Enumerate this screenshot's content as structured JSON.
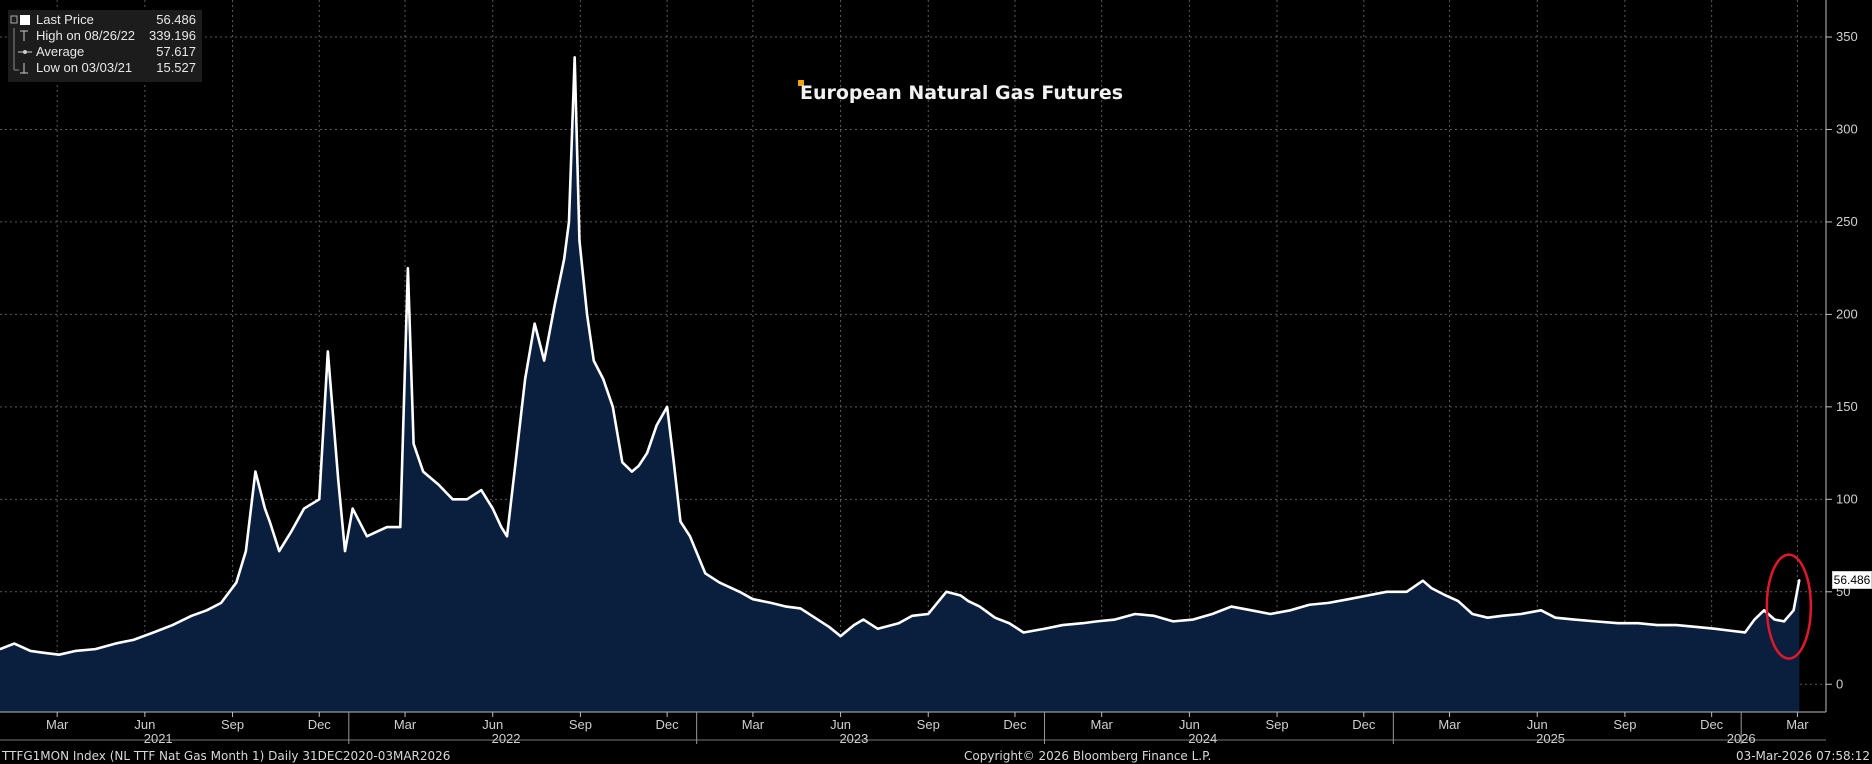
{
  "legend": {
    "items": [
      {
        "label": "Last Price",
        "value": "56.486"
      },
      {
        "label": "High on 08/26/22",
        "value": "339.196"
      },
      {
        "label": "Average",
        "value": "57.617"
      },
      {
        "label": "Low on 03/03/21",
        "value": "15.527"
      }
    ]
  },
  "footer": {
    "left": "TTFG1MON Index (NL TTF Nat Gas Month 1) Daily 31DEC2020-03MAR2026",
    "center": "Copyright© 2026 Bloomberg Finance L.P.",
    "right": "03-Mar-2026 07:58:12"
  },
  "colors": {
    "line": "#ffffff",
    "fill": "#0a1f3d",
    "annotation": "#e0182d",
    "title_marker": "#f5a30a",
    "grid": "#5a5a5a"
  },
  "chart_data": {
    "type": "area",
    "title": "European Natural Gas Futures",
    "series": [
      {
        "name": "TTFG1MON Index",
        "dates": [
          "2020-12-31",
          "2021-01-15",
          "2021-02-01",
          "2021-02-15",
          "2021-03-03",
          "2021-03-20",
          "2021-04-10",
          "2021-05-01",
          "2021-05-20",
          "2021-06-10",
          "2021-06-30",
          "2021-07-20",
          "2021-08-05",
          "2021-08-20",
          "2021-09-05",
          "2021-09-15",
          "2021-09-25",
          "2021-10-05",
          "2021-10-10",
          "2021-10-20",
          "2021-11-01",
          "2021-11-15",
          "2021-12-01",
          "2021-12-10",
          "2021-12-21",
          "2021-12-28",
          "2022-01-05",
          "2022-01-20",
          "2022-02-10",
          "2022-02-24",
          "2022-03-04",
          "2022-03-10",
          "2022-03-20",
          "2022-04-05",
          "2022-04-20",
          "2022-05-05",
          "2022-05-20",
          "2022-06-01",
          "2022-06-10",
          "2022-06-16",
          "2022-06-25",
          "2022-07-05",
          "2022-07-15",
          "2022-07-25",
          "2022-08-05",
          "2022-08-15",
          "2022-08-20",
          "2022-08-26",
          "2022-08-31",
          "2022-09-08",
          "2022-09-15",
          "2022-09-25",
          "2022-10-05",
          "2022-10-15",
          "2022-10-25",
          "2022-11-01",
          "2022-11-10",
          "2022-11-20",
          "2022-12-01",
          "2022-12-08",
          "2022-12-15",
          "2022-12-25",
          "2023-01-10",
          "2023-01-25",
          "2023-02-15",
          "2023-03-01",
          "2023-03-20",
          "2023-04-05",
          "2023-04-20",
          "2023-05-05",
          "2023-05-20",
          "2023-06-01",
          "2023-06-15",
          "2023-06-25",
          "2023-07-10",
          "2023-08-01",
          "2023-08-15",
          "2023-09-01",
          "2023-09-20",
          "2023-10-05",
          "2023-10-13",
          "2023-10-25",
          "2023-11-10",
          "2023-11-25",
          "2023-12-10",
          "2024-01-01",
          "2024-01-20",
          "2024-02-10",
          "2024-02-25",
          "2024-03-15",
          "2024-04-05",
          "2024-04-25",
          "2024-05-15",
          "2024-06-05",
          "2024-06-25",
          "2024-07-15",
          "2024-08-05",
          "2024-08-25",
          "2024-09-15",
          "2024-10-05",
          "2024-10-25",
          "2024-11-15",
          "2024-12-05",
          "2024-12-25",
          "2025-01-15",
          "2025-02-01",
          "2025-02-10",
          "2025-02-25",
          "2025-03-10",
          "2025-03-25",
          "2025-04-10",
          "2025-04-25",
          "2025-05-15",
          "2025-06-05",
          "2025-06-20",
          "2025-07-10",
          "2025-08-01",
          "2025-08-25",
          "2025-09-15",
          "2025-10-05",
          "2025-10-25",
          "2025-11-15",
          "2025-12-05",
          "2025-12-20",
          "2026-01-05",
          "2026-01-15",
          "2026-01-25",
          "2026-02-05",
          "2026-02-15",
          "2026-02-25",
          "2026-03-03"
        ],
        "values": [
          19,
          22,
          18,
          17,
          16,
          18,
          19,
          22,
          24,
          28,
          32,
          37,
          40,
          44,
          55,
          72,
          115,
          95,
          88,
          72,
          82,
          95,
          100,
          180,
          110,
          72,
          95,
          80,
          85,
          85,
          225,
          130,
          115,
          108,
          100,
          100,
          105,
          95,
          85,
          80,
          120,
          165,
          195,
          175,
          205,
          230,
          250,
          339,
          240,
          200,
          175,
          165,
          150,
          120,
          115,
          118,
          125,
          140,
          150,
          120,
          88,
          80,
          60,
          55,
          50,
          46,
          44,
          42,
          41,
          36,
          31,
          26,
          32,
          35,
          30,
          33,
          37,
          38,
          50,
          48,
          45,
          42,
          36,
          33,
          28,
          30,
          32,
          33,
          34,
          35,
          38,
          37,
          34,
          35,
          38,
          42,
          40,
          38,
          40,
          43,
          44,
          46,
          48,
          50,
          50,
          56,
          52,
          48,
          45,
          38,
          36,
          37,
          38,
          40,
          36,
          35,
          34,
          33,
          33,
          32,
          32,
          31,
          30,
          29,
          28,
          35,
          40,
          35,
          34,
          40,
          56.486
        ]
      }
    ],
    "ylim": [
      -15,
      370
    ],
    "yticks": [
      0,
      50,
      100,
      150,
      200,
      250,
      300,
      350
    ],
    "xrange": [
      "2020-12-31",
      "2026-03-31"
    ],
    "month_ticks": [
      {
        "date": "2021-03-01",
        "label": "Mar"
      },
      {
        "date": "2021-06-01",
        "label": "Jun"
      },
      {
        "date": "2021-09-01",
        "label": "Sep"
      },
      {
        "date": "2021-12-01",
        "label": "Dec"
      },
      {
        "date": "2022-03-01",
        "label": "Mar"
      },
      {
        "date": "2022-06-01",
        "label": "Jun"
      },
      {
        "date": "2022-09-01",
        "label": "Sep"
      },
      {
        "date": "2022-12-01",
        "label": "Dec"
      },
      {
        "date": "2023-03-01",
        "label": "Mar"
      },
      {
        "date": "2023-06-01",
        "label": "Jun"
      },
      {
        "date": "2023-09-01",
        "label": "Sep"
      },
      {
        "date": "2023-12-01",
        "label": "Dec"
      },
      {
        "date": "2024-03-01",
        "label": "Mar"
      },
      {
        "date": "2024-06-01",
        "label": "Jun"
      },
      {
        "date": "2024-09-01",
        "label": "Sep"
      },
      {
        "date": "2024-12-01",
        "label": "Dec"
      },
      {
        "date": "2025-03-01",
        "label": "Mar"
      },
      {
        "date": "2025-06-01",
        "label": "Jun"
      },
      {
        "date": "2025-09-01",
        "label": "Sep"
      },
      {
        "date": "2025-12-01",
        "label": "Dec"
      },
      {
        "date": "2026-03-01",
        "label": "Mar"
      }
    ],
    "year_labels": [
      {
        "date": "2021-06-15",
        "label": "2021"
      },
      {
        "date": "2022-06-15",
        "label": "2022"
      },
      {
        "date": "2023-06-15",
        "label": "2023"
      },
      {
        "date": "2024-06-15",
        "label": "2024"
      },
      {
        "date": "2025-06-15",
        "label": "2025"
      },
      {
        "date": "2026-01-01",
        "label": "2026"
      }
    ],
    "year_dividers": [
      "2022-01-01",
      "2023-01-01",
      "2024-01-01",
      "2025-01-01",
      "2026-01-01"
    ],
    "last_value_label": "56.486",
    "annotation": {
      "type": "ellipse",
      "around": "last value",
      "date": "2026-02-20",
      "value": 42
    },
    "grid": true,
    "legend_position": "top-left"
  }
}
